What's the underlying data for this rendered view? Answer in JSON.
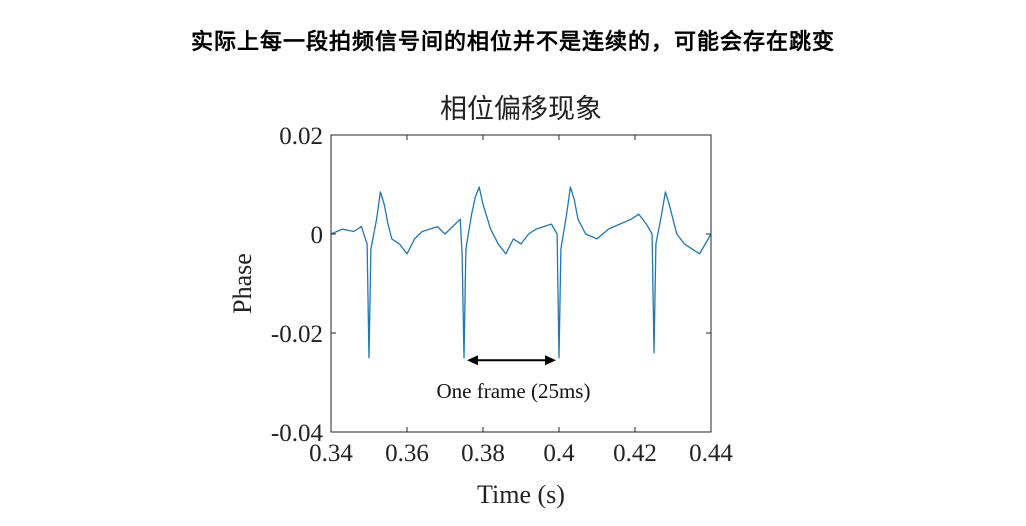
{
  "heading": "实际上每一段拍频信号间的相位并不是连续的，可能会存在跳变",
  "chart_data": {
    "type": "line",
    "title": "相位偏移现象",
    "xlabel": "Time (s)",
    "ylabel": "Phase",
    "xlim": [
      0.34,
      0.44
    ],
    "ylim": [
      -0.04,
      0.02
    ],
    "xticks": [
      0.34,
      0.36,
      0.38,
      0.4,
      0.42,
      0.44
    ],
    "xtick_labels": [
      "0.34",
      "0.36",
      "0.38",
      "0.4",
      "0.42",
      "0.44"
    ],
    "yticks": [
      0.02,
      0,
      -0.02,
      -0.04
    ],
    "ytick_labels": [
      "0.02",
      "0",
      "-0.02",
      "-0.04"
    ],
    "grid": false,
    "line_color": "#1f77b4",
    "series": [
      {
        "x": [
          0.34,
          0.343,
          0.346,
          0.348,
          0.3495,
          0.35,
          0.3505,
          0.352,
          0.353,
          0.354,
          0.355,
          0.356,
          0.358,
          0.36,
          0.362,
          0.364,
          0.366,
          0.368,
          0.37,
          0.372,
          0.374,
          0.3745,
          0.375,
          0.3755,
          0.377,
          0.378,
          0.379,
          0.38,
          0.382,
          0.384,
          0.386,
          0.388,
          0.39,
          0.392,
          0.394,
          0.396,
          0.398,
          0.3995,
          0.4,
          0.4005,
          0.402,
          0.403,
          0.404,
          0.405,
          0.407,
          0.41,
          0.413,
          0.416,
          0.419,
          0.421,
          0.423,
          0.4245,
          0.425,
          0.4255,
          0.427,
          0.428,
          0.429,
          0.431,
          0.433,
          0.435,
          0.437,
          0.44
        ],
        "y": [
          0.0,
          0.001,
          0.0005,
          0.0015,
          -0.002,
          -0.025,
          -0.003,
          0.003,
          0.0085,
          0.006,
          0.002,
          -0.001,
          -0.002,
          -0.004,
          -0.001,
          0.0005,
          0.001,
          0.0015,
          0.0,
          0.0015,
          0.003,
          -0.004,
          -0.025,
          -0.003,
          0.004,
          0.0075,
          0.0095,
          0.006,
          0.001,
          -0.002,
          -0.004,
          -0.001,
          -0.002,
          0.0,
          0.001,
          0.0015,
          0.002,
          0.0,
          -0.025,
          -0.003,
          0.004,
          0.0095,
          0.007,
          0.003,
          0.0,
          -0.001,
          0.001,
          0.002,
          0.003,
          0.004,
          0.002,
          0.0,
          -0.024,
          -0.002,
          0.004,
          0.0085,
          0.006,
          0.0,
          -0.002,
          -0.003,
          -0.004,
          0.0
        ]
      }
    ],
    "annotation": {
      "text": "One frame (25ms)",
      "x_start": 0.375,
      "x_end": 0.4,
      "y": -0.0255
    }
  }
}
